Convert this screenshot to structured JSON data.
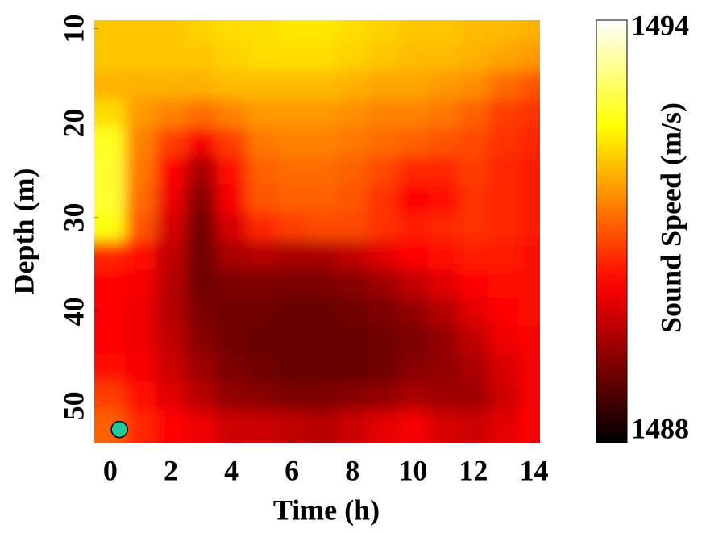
{
  "chart_data": {
    "type": "heatmap",
    "xlabel": "Time (h)",
    "ylabel": "Depth (m)",
    "colorbar_label": "Sound Speed (m/s)",
    "colormap": "hot",
    "clim": [
      1488,
      1494
    ],
    "cticks": [
      1488,
      1494
    ],
    "xlim": [
      -0.53,
      14.2
    ],
    "ylim": [
      53.9,
      9.1
    ],
    "xticks": [
      0,
      2,
      4,
      6,
      8,
      10,
      12,
      14
    ],
    "yticks": [
      10,
      20,
      30,
      40,
      50
    ],
    "x": [
      0,
      1,
      2,
      3,
      4,
      5,
      6,
      7,
      8,
      9,
      10,
      11,
      12,
      13,
      14
    ],
    "y": [
      10,
      13,
      16,
      19,
      22,
      25,
      28,
      31,
      34,
      37,
      40,
      43,
      46,
      49,
      52
    ],
    "values": [
      [
        1492.0,
        1492.0,
        1492.0,
        1492.1,
        1492.2,
        1492.2,
        1492.3,
        1492.3,
        1492.2,
        1492.1,
        1492.0,
        1492.0,
        1491.9,
        1491.9,
        1491.8
      ],
      [
        1492.0,
        1492.0,
        1492.0,
        1492.0,
        1492.1,
        1492.2,
        1492.2,
        1492.2,
        1492.1,
        1492.0,
        1491.9,
        1491.9,
        1491.8,
        1491.7,
        1491.6
      ],
      [
        1491.8,
        1491.8,
        1491.8,
        1491.8,
        1491.9,
        1491.9,
        1491.9,
        1491.9,
        1491.8,
        1491.7,
        1491.7,
        1491.6,
        1491.5,
        1491.2,
        1491.0
      ],
      [
        1492.2,
        1491.6,
        1491.4,
        1491.2,
        1491.4,
        1491.6,
        1491.6,
        1491.6,
        1491.5,
        1491.4,
        1491.4,
        1491.3,
        1491.1,
        1490.8,
        1490.7
      ],
      [
        1492.7,
        1491.4,
        1490.8,
        1490.2,
        1490.8,
        1491.3,
        1491.4,
        1491.4,
        1491.3,
        1491.2,
        1491.1,
        1491.0,
        1490.9,
        1490.7,
        1490.6
      ],
      [
        1492.8,
        1491.3,
        1490.3,
        1489.5,
        1490.4,
        1491.1,
        1491.2,
        1491.2,
        1491.1,
        1490.9,
        1490.6,
        1490.6,
        1490.8,
        1490.6,
        1490.5
      ],
      [
        1492.8,
        1491.2,
        1490.1,
        1489.2,
        1490.2,
        1491.0,
        1491.1,
        1491.1,
        1491.0,
        1490.7,
        1490.3,
        1490.4,
        1490.7,
        1490.6,
        1490.5
      ],
      [
        1492.6,
        1491.0,
        1489.9,
        1489.0,
        1489.9,
        1490.6,
        1490.8,
        1490.9,
        1490.9,
        1490.7,
        1490.5,
        1490.6,
        1490.7,
        1490.6,
        1490.5
      ],
      [
        1490.6,
        1490.4,
        1489.7,
        1489.0,
        1489.5,
        1489.6,
        1489.5,
        1489.5,
        1489.7,
        1490.0,
        1490.3,
        1490.4,
        1490.5,
        1490.5,
        1490.4
      ],
      [
        1490.3,
        1490.2,
        1489.6,
        1489.0,
        1489.1,
        1489.1,
        1489.1,
        1489.1,
        1489.2,
        1489.4,
        1489.7,
        1490.0,
        1490.3,
        1490.4,
        1490.4
      ],
      [
        1490.3,
        1490.1,
        1489.6,
        1489.1,
        1489.0,
        1489.0,
        1488.9,
        1488.9,
        1489.0,
        1489.1,
        1489.3,
        1489.6,
        1490.0,
        1490.3,
        1490.4
      ],
      [
        1490.3,
        1490.1,
        1489.7,
        1489.2,
        1489.0,
        1488.9,
        1488.9,
        1488.9,
        1488.9,
        1489.0,
        1489.1,
        1489.3,
        1489.7,
        1490.1,
        1490.3
      ],
      [
        1490.4,
        1490.2,
        1489.8,
        1489.4,
        1489.1,
        1489.0,
        1488.9,
        1488.9,
        1488.9,
        1489.0,
        1489.2,
        1489.3,
        1489.5,
        1489.9,
        1490.2
      ],
      [
        1490.8,
        1490.4,
        1490.0,
        1489.6,
        1489.3,
        1489.2,
        1489.1,
        1489.1,
        1489.2,
        1489.3,
        1489.5,
        1489.4,
        1489.4,
        1489.8,
        1490.2
      ],
      [
        1491.1,
        1490.6,
        1490.3,
        1490.1,
        1489.8,
        1489.8,
        1489.7,
        1489.6,
        1489.8,
        1490.0,
        1490.2,
        1489.9,
        1489.8,
        1490.0,
        1490.3
      ]
    ],
    "marker": {
      "x": 0.3,
      "y": 52.5,
      "color": "#1fc99a"
    }
  }
}
